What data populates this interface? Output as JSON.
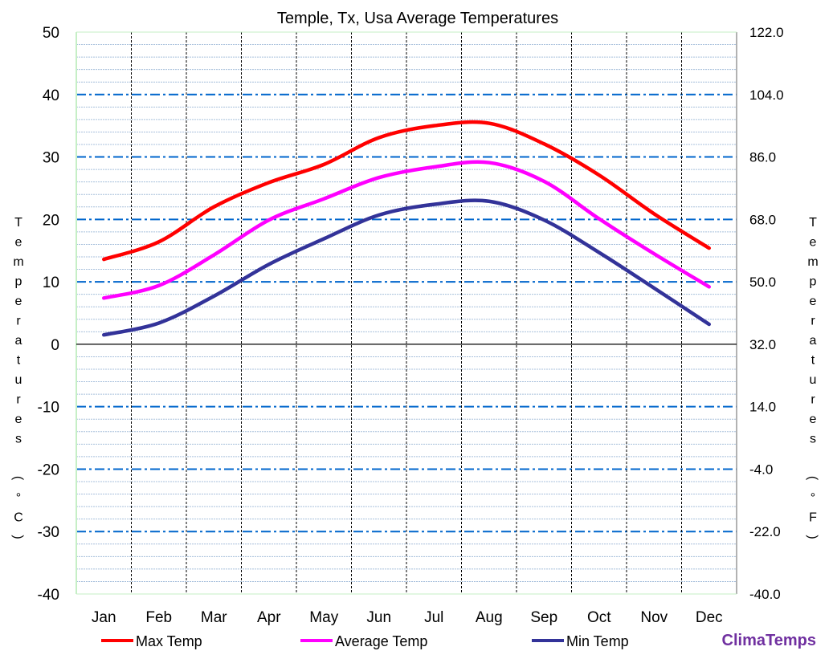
{
  "chart_data": {
    "type": "line",
    "title": "Temple, Tx, Usa Average Temperatures",
    "ylabel": "Temperatures (°C)",
    "ylabel_right": "Temperatures (°F)",
    "categories": [
      "Jan",
      "Feb",
      "Mar",
      "Apr",
      "May",
      "Jun",
      "Jul",
      "Aug",
      "Sep",
      "Oct",
      "Nov",
      "Dec"
    ],
    "ylim": [
      -40,
      50
    ],
    "ylim_right": [
      -40.0,
      122.0
    ],
    "yticks": [
      "50",
      "40",
      "30",
      "20",
      "10",
      "0",
      "-10",
      "-20",
      "-30",
      "-40"
    ],
    "yticks_right": [
      "122.0",
      "104.0",
      "86.0",
      "68.0",
      "50.0",
      "32.0",
      "14.0",
      "-4.0",
      "-22.0",
      "-40.0"
    ],
    "grid": true,
    "legend_position": "bottom",
    "series": [
      {
        "name": "Max Temp",
        "color": "#FF0000",
        "values": [
          13.6,
          16.4,
          22.0,
          25.9,
          28.8,
          33.1,
          35.0,
          35.4,
          32.1,
          27.1,
          20.9,
          15.4
        ]
      },
      {
        "name": "Average Temp",
        "color": "#FF00FF",
        "values": [
          7.4,
          9.4,
          14.3,
          19.9,
          23.3,
          26.7,
          28.4,
          29.1,
          26.1,
          20.1,
          14.5,
          9.2
        ]
      },
      {
        "name": "Min Temp",
        "color": "#333399",
        "values": [
          1.5,
          3.4,
          7.7,
          12.8,
          16.9,
          20.7,
          22.4,
          22.9,
          19.9,
          14.7,
          9.0,
          3.2
        ]
      }
    ]
  },
  "branding": {
    "logo": "ClimaTemps",
    "color": "#7030A0"
  }
}
